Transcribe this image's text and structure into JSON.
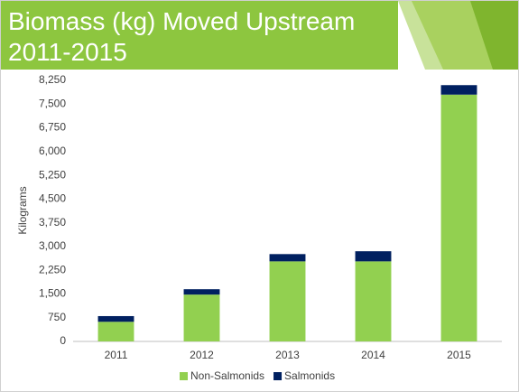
{
  "chart_data": {
    "type": "stacked_bar",
    "title": "Biomass (kg) Moved Upstream 2011-2015",
    "y_label": "Kilograms",
    "categories": [
      "2011",
      "2012",
      "2013",
      "2014",
      "2015"
    ],
    "series": [
      {
        "name": "Non-Salmonids",
        "color": "#92d050",
        "values": [
          620,
          1480,
          2530,
          2530,
          7800
        ]
      },
      {
        "name": "Salmonids",
        "color": "#002060",
        "values": [
          180,
          170,
          230,
          320,
          300
        ]
      }
    ],
    "ylim": [
      0,
      8250
    ],
    "yticks": [
      0,
      750,
      {
        "value": 1500,
        "label": "1,500"
      },
      {
        "value": 2250,
        "label": "2,250"
      },
      {
        "value": 3000,
        "label": "3,000"
      },
      {
        "value": 3750,
        "label": "3,750"
      },
      {
        "value": 4500,
        "label": "4,500"
      },
      {
        "value": 5250,
        "label": "5,250"
      },
      {
        "value": 6000,
        "label": "6,000"
      },
      {
        "value": 6750,
        "label": "6,750"
      },
      {
        "value": 7500,
        "label": "7,500"
      },
      {
        "value": 8250,
        "label": "8,250"
      }
    ],
    "grid": false,
    "legend": "bottom"
  }
}
